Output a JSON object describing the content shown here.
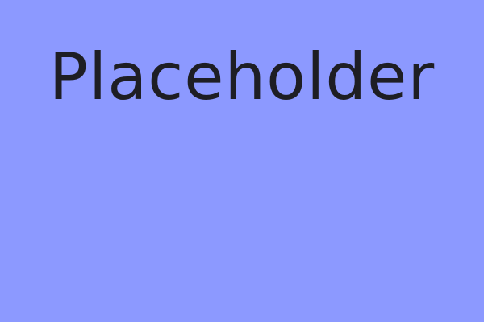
{
  "placeholder": {
    "text": "Placeholder"
  },
  "colors": {
    "background": "#8c99ff",
    "text": "#1e1e24"
  }
}
